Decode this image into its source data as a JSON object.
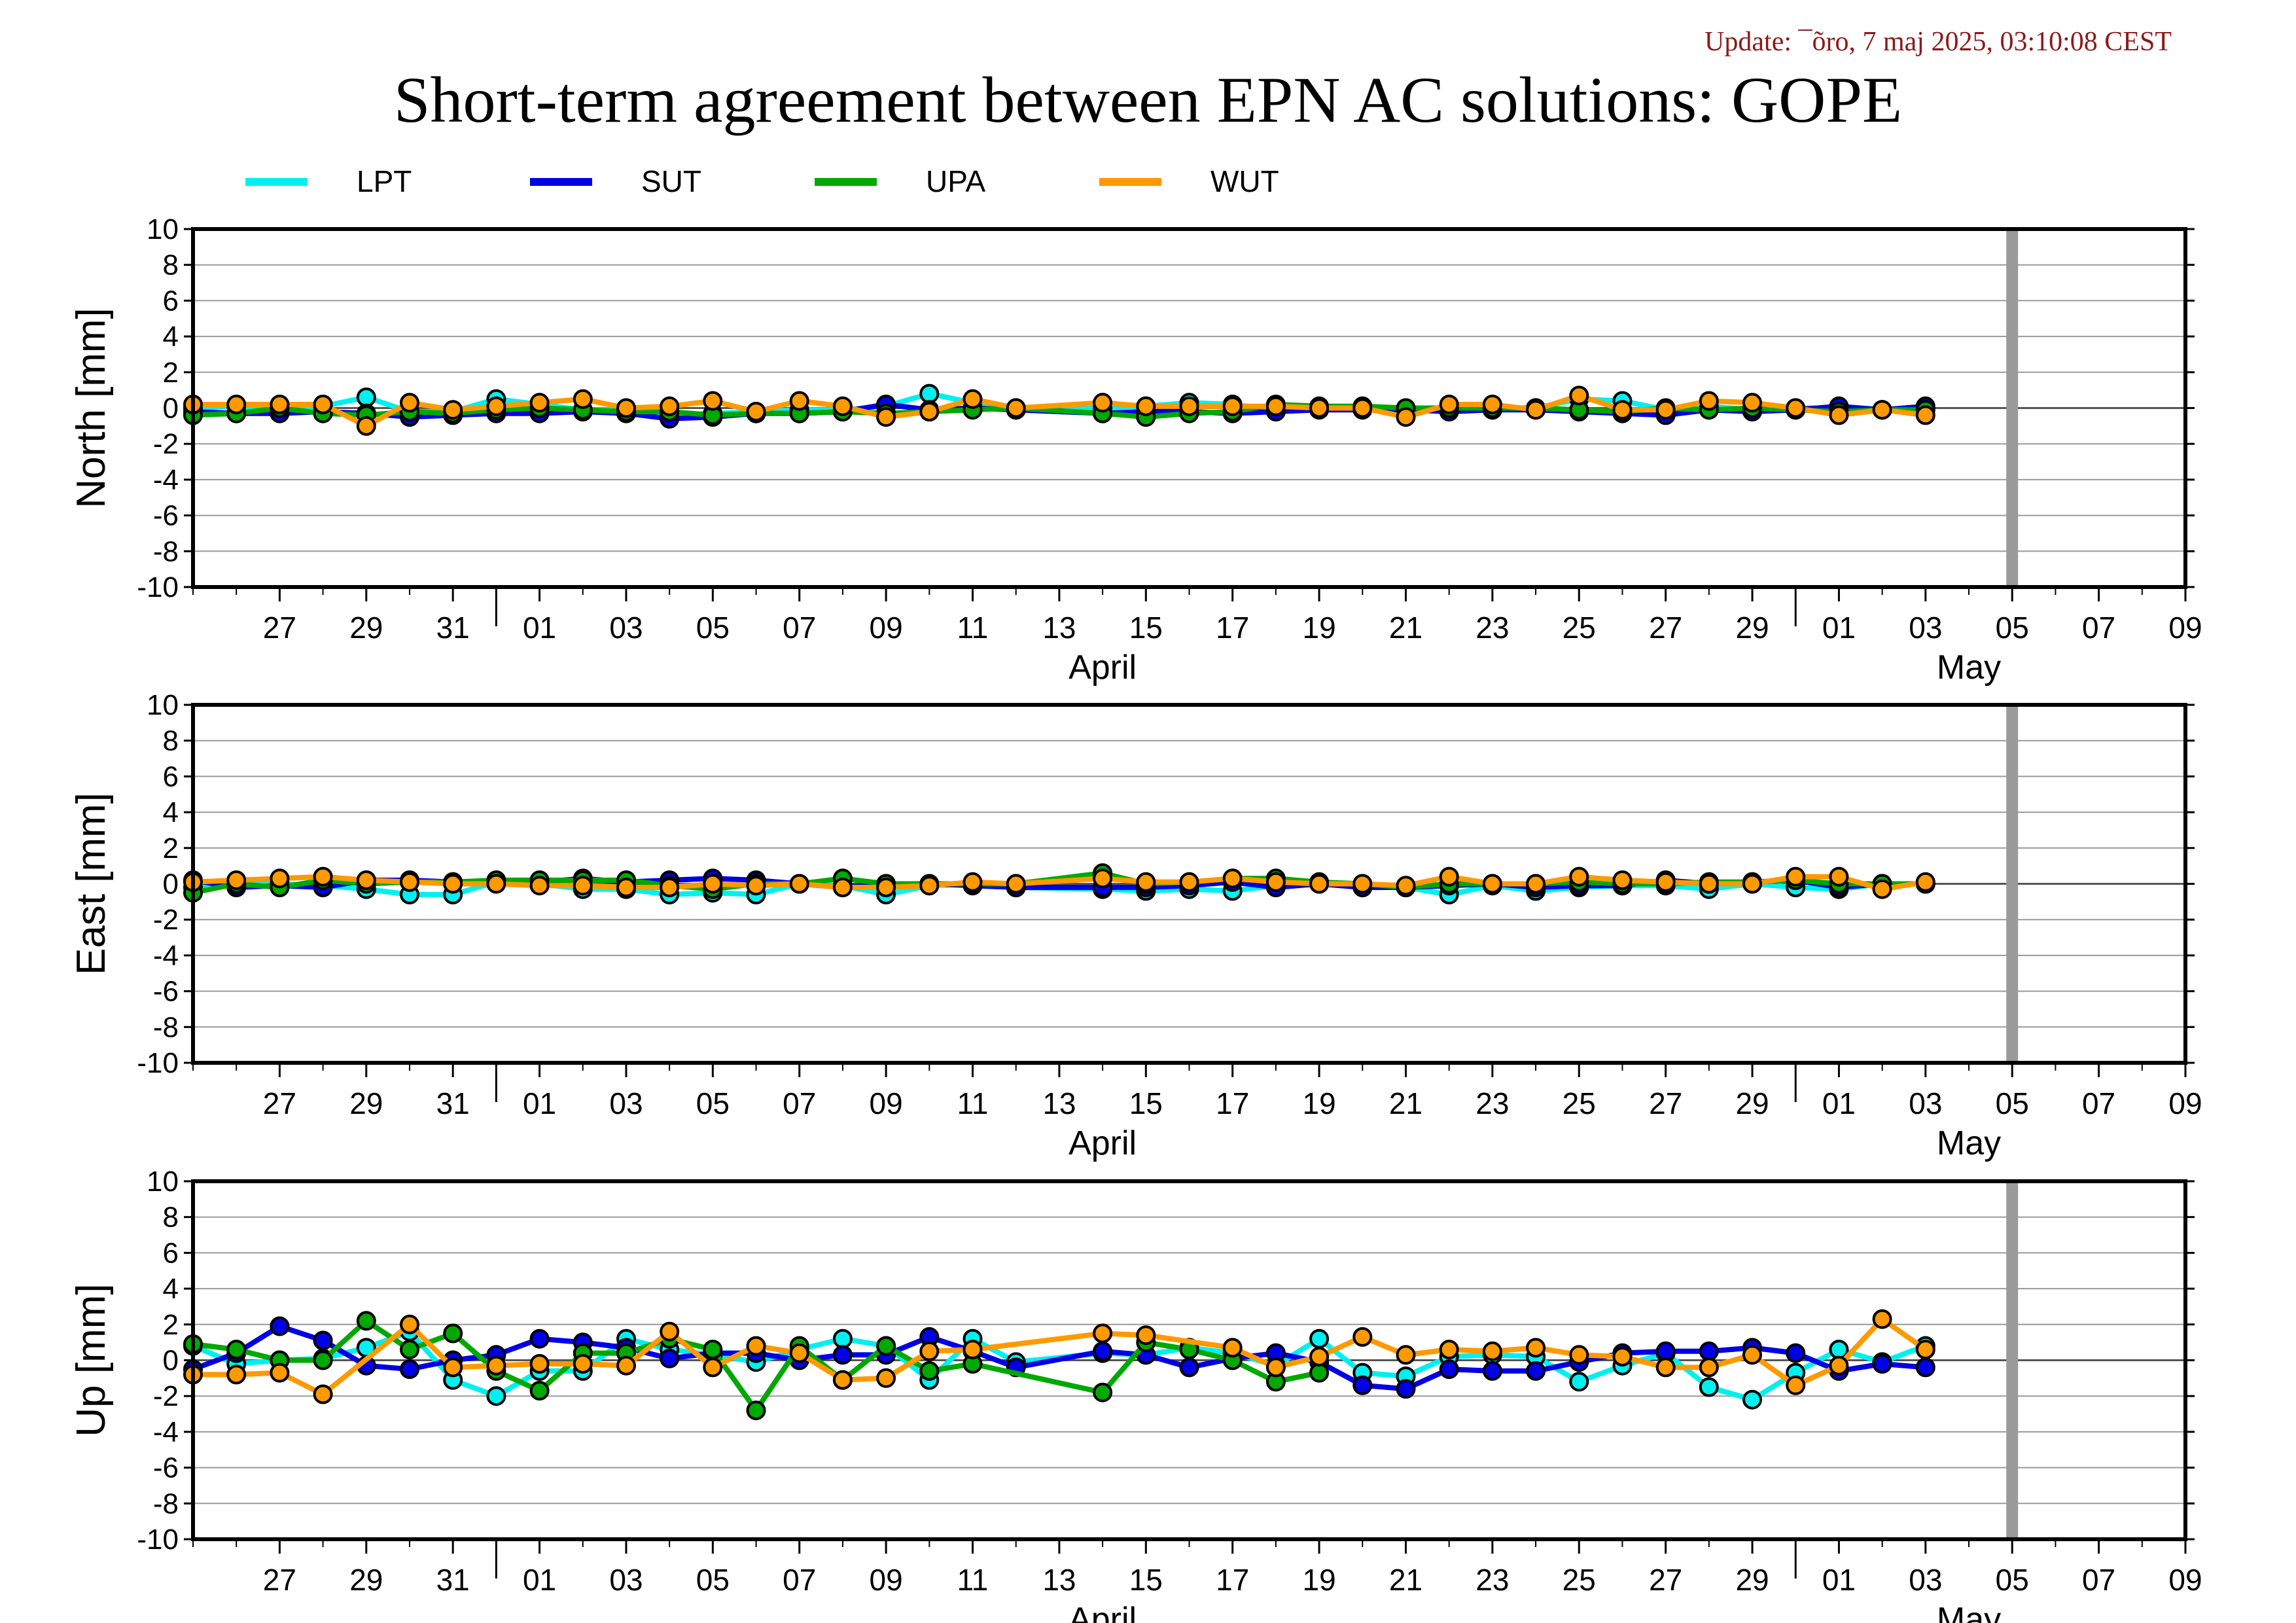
{
  "update_text": "Update: ¯õro, 7 maj 2025, 03:10:08 CEST",
  "chart_data": {
    "type": "line",
    "title": "Short-term agreement between EPN AC solutions: GOPE",
    "x_range": [
      "2025-03-25",
      "2025-05-10"
    ],
    "day_tick_labels": [
      "27",
      "29",
      "31",
      "01",
      "03",
      "05",
      "07",
      "09",
      "11",
      "13",
      "15",
      "17",
      "19",
      "21",
      "23",
      "25",
      "27",
      "29",
      "01",
      "03",
      "05",
      "07",
      "09"
    ],
    "month_labels": [
      {
        "text": "April",
        "date": "2025-04-15"
      },
      {
        "text": "May",
        "date": "2025-05-05"
      }
    ],
    "month_boundaries": [
      "2025-04-01",
      "2025-05-01"
    ],
    "current_date_marker": "2025-05-06",
    "legend_placement": "top",
    "series_meta": [
      {
        "name": "LPT",
        "color": "#00f0f0"
      },
      {
        "name": "SUT",
        "color": "#0000e6"
      },
      {
        "name": "UPA",
        "color": "#00a800"
      },
      {
        "name": "WUT",
        "color": "#ff9900"
      }
    ],
    "dates": [
      "2025-03-25",
      "2025-03-26",
      "2025-03-27",
      "2025-03-28",
      "2025-03-29",
      "2025-03-30",
      "2025-03-31",
      "2025-04-01",
      "2025-04-02",
      "2025-04-03",
      "2025-04-04",
      "2025-04-05",
      "2025-04-06",
      "2025-04-07",
      "2025-04-08",
      "2025-04-09",
      "2025-04-10",
      "2025-04-11",
      "2025-04-12",
      "2025-04-13",
      "2025-04-14",
      "2025-04-15",
      "2025-04-16",
      "2025-04-17",
      "2025-04-18",
      "2025-04-19",
      "2025-04-20",
      "2025-04-21",
      "2025-04-22",
      "2025-04-23",
      "2025-04-24",
      "2025-04-25",
      "2025-04-26",
      "2025-04-27",
      "2025-04-28",
      "2025-04-29",
      "2025-04-30",
      "2025-05-01",
      "2025-05-02",
      "2025-05-03",
      "2025-05-04",
      "2025-05-05"
    ],
    "panels": [
      {
        "ylabel": "North [mm]",
        "ylim": [
          -10,
          10
        ],
        "yticks": [
          -10,
          -8,
          -6,
          -4,
          -2,
          0,
          2,
          4,
          6,
          8,
          10
        ],
        "series": [
          {
            "name": "LPT",
            "values": [
              0.0,
              0.1,
              -0.1,
              0.1,
              0.6,
              -0.2,
              -0.2,
              0.5,
              0.2,
              -0.1,
              -0.1,
              -0.4,
              -0.3,
              -0.2,
              -0.1,
              -0.1,
              0.1,
              0.8,
              0.3,
              -0.1,
              null,
              0.0,
              0.1,
              0.3,
              0.2,
              -0.1,
              0.0,
              0.0,
              -0.1,
              0.0,
              -0.1,
              0.0,
              0.5,
              0.4,
              -0.1,
              0.1,
              -0.1,
              0.0,
              0.0,
              -0.1,
              0.0,
              null
            ]
          },
          {
            "name": "SUT",
            "values": [
              -0.2,
              -0.3,
              -0.3,
              -0.2,
              -0.3,
              -0.5,
              -0.4,
              -0.3,
              -0.3,
              -0.2,
              -0.3,
              -0.6,
              -0.5,
              -0.3,
              -0.3,
              -0.2,
              0.2,
              -0.1,
              0.0,
              -0.1,
              null,
              -0.3,
              -0.2,
              -0.2,
              -0.3,
              -0.2,
              -0.1,
              -0.1,
              -0.1,
              -0.2,
              -0.1,
              -0.1,
              -0.2,
              -0.3,
              -0.4,
              -0.1,
              -0.2,
              -0.1,
              0.1,
              -0.1,
              0.1,
              null
            ]
          },
          {
            "name": "UPA",
            "values": [
              -0.4,
              -0.3,
              0.0,
              -0.3,
              -0.4,
              -0.2,
              -0.3,
              -0.1,
              0.0,
              -0.1,
              -0.2,
              -0.2,
              -0.4,
              -0.3,
              -0.3,
              -0.2,
              -0.3,
              -0.2,
              -0.1,
              0.0,
              null,
              -0.3,
              -0.5,
              -0.3,
              -0.2,
              0.2,
              0.1,
              0.1,
              0.0,
              0.0,
              0.0,
              0.0,
              -0.1,
              -0.2,
              0.0,
              -0.1,
              0.0,
              -0.1,
              -0.2,
              -0.1,
              -0.1,
              null
            ]
          },
          {
            "name": "WUT",
            "values": [
              0.2,
              0.2,
              0.2,
              0.2,
              -1.0,
              0.3,
              -0.1,
              0.1,
              0.3,
              0.5,
              0.0,
              0.1,
              0.4,
              -0.2,
              0.4,
              0.1,
              -0.5,
              -0.2,
              0.5,
              0.0,
              null,
              0.3,
              0.1,
              0.1,
              0.1,
              0.1,
              0.0,
              0.0,
              -0.5,
              0.2,
              0.2,
              -0.1,
              0.7,
              -0.1,
              -0.1,
              0.4,
              0.3,
              0.0,
              -0.4,
              -0.1,
              -0.4,
              null
            ]
          }
        ]
      },
      {
        "ylabel": "East [mm]",
        "ylim": [
          -10,
          10
        ],
        "yticks": [
          -10,
          -8,
          -6,
          -4,
          -2,
          0,
          2,
          4,
          6,
          8,
          10
        ],
        "series": [
          {
            "name": "LPT",
            "values": [
              -0.2,
              0.0,
              0.0,
              -0.1,
              -0.3,
              -0.6,
              -0.6,
              0.1,
              0.0,
              -0.3,
              -0.3,
              -0.6,
              -0.5,
              -0.6,
              0.0,
              -0.1,
              -0.6,
              -0.1,
              0.0,
              -0.2,
              null,
              -0.3,
              -0.4,
              -0.3,
              -0.4,
              -0.1,
              0.0,
              -0.2,
              -0.2,
              -0.6,
              -0.1,
              -0.4,
              -0.2,
              -0.1,
              -0.1,
              -0.3,
              0.0,
              -0.2,
              -0.3,
              0.0,
              0.0,
              null
            ]
          },
          {
            "name": "SUT",
            "values": [
              0.2,
              -0.2,
              -0.1,
              -0.2,
              0.2,
              0.2,
              0.1,
              0.1,
              0.1,
              0.3,
              0.1,
              0.2,
              0.3,
              0.2,
              0.0,
              -0.2,
              0.0,
              0.0,
              -0.1,
              -0.2,
              null,
              -0.2,
              -0.2,
              -0.1,
              0.1,
              -0.2,
              0.0,
              -0.2,
              -0.2,
              -0.1,
              0.0,
              -0.2,
              -0.1,
              -0.1,
              0.2,
              0.0,
              0.1,
              0.2,
              -0.2,
              0.0,
              0.0,
              null
            ]
          },
          {
            "name": "UPA",
            "values": [
              -0.5,
              0.0,
              -0.2,
              0.2,
              0.0,
              0.1,
              0.1,
              0.2,
              0.2,
              0.2,
              0.2,
              -0.1,
              -0.3,
              0.0,
              0.0,
              0.3,
              0.0,
              0.0,
              0.0,
              0.0,
              null,
              0.6,
              0.0,
              0.1,
              0.3,
              0.3,
              0.1,
              0.0,
              -0.2,
              0.0,
              0.0,
              0.0,
              0.1,
              0.0,
              0.0,
              0.1,
              0.1,
              0.2,
              0.0,
              0.0,
              0.0,
              null
            ]
          },
          {
            "name": "WUT",
            "values": [
              0.1,
              0.2,
              0.3,
              0.4,
              0.2,
              0.1,
              0.0,
              0.0,
              -0.1,
              -0.1,
              -0.2,
              -0.2,
              0.0,
              -0.1,
              0.0,
              -0.2,
              -0.2,
              -0.1,
              0.1,
              0.0,
              null,
              0.3,
              0.1,
              0.1,
              0.3,
              0.1,
              0.0,
              0.0,
              -0.1,
              0.4,
              0.0,
              0.0,
              0.4,
              0.2,
              0.1,
              0.0,
              0.0,
              0.4,
              0.4,
              -0.3,
              0.1,
              null
            ]
          }
        ]
      },
      {
        "ylabel": "Up [mm]",
        "ylim": [
          -10,
          10
        ],
        "yticks": [
          -10,
          -8,
          -6,
          -4,
          -2,
          0,
          2,
          4,
          6,
          8,
          10
        ],
        "series": [
          {
            "name": "LPT",
            "values": [
              0.8,
              -0.2,
              0.0,
              0.1,
              0.7,
              1.6,
              -1.1,
              -2.0,
              -0.6,
              -0.6,
              1.2,
              0.6,
              0.3,
              -0.1,
              0.6,
              1.2,
              0.8,
              -1.1,
              1.2,
              -0.1,
              null,
              0.4,
              0.3,
              0.7,
              0.4,
              -0.3,
              1.2,
              -0.7,
              -0.9,
              0.2,
              0.3,
              0.2,
              -1.2,
              -0.3,
              0.4,
              -1.5,
              -2.2,
              -0.7,
              0.6,
              -0.1,
              0.8,
              null
            ]
          },
          {
            "name": "SUT",
            "values": [
              -0.5,
              0.4,
              1.9,
              1.1,
              -0.3,
              -0.5,
              0.0,
              0.3,
              1.2,
              1.0,
              0.7,
              0.1,
              0.4,
              0.4,
              0.0,
              0.3,
              0.3,
              1.3,
              0.5,
              -0.4,
              null,
              0.5,
              0.3,
              -0.4,
              0.1,
              0.4,
              -0.1,
              -1.4,
              -1.6,
              -0.5,
              -0.6,
              -0.6,
              -0.1,
              0.4,
              0.5,
              0.5,
              0.7,
              0.4,
              -0.6,
              -0.2,
              -0.4,
              null
            ]
          },
          {
            "name": "UPA",
            "values": [
              0.9,
              0.6,
              0.0,
              0.0,
              2.2,
              0.6,
              1.5,
              -0.6,
              -1.7,
              0.4,
              0.4,
              1.2,
              0.6,
              -2.8,
              0.8,
              -1.1,
              0.8,
              -0.6,
              -0.2,
              null,
              null,
              -1.8,
              1.0,
              0.6,
              0.0,
              -1.2,
              -0.7,
              null,
              null,
              null,
              null,
              null,
              null,
              null,
              null,
              null,
              null,
              null,
              null,
              null,
              null,
              null
            ]
          },
          {
            "name": "WUT",
            "values": [
              -0.8,
              -0.8,
              -0.7,
              -1.9,
              null,
              2.0,
              -0.4,
              -0.3,
              -0.2,
              -0.2,
              -0.3,
              1.6,
              -0.4,
              0.8,
              0.4,
              -1.1,
              -1.0,
              0.5,
              0.6,
              null,
              null,
              1.5,
              1.4,
              null,
              0.7,
              -0.4,
              0.2,
              1.3,
              0.3,
              0.6,
              0.5,
              0.7,
              0.3,
              0.2,
              -0.4,
              -0.4,
              0.3,
              -1.4,
              -0.3,
              2.3,
              0.6,
              null
            ]
          }
        ]
      }
    ]
  }
}
